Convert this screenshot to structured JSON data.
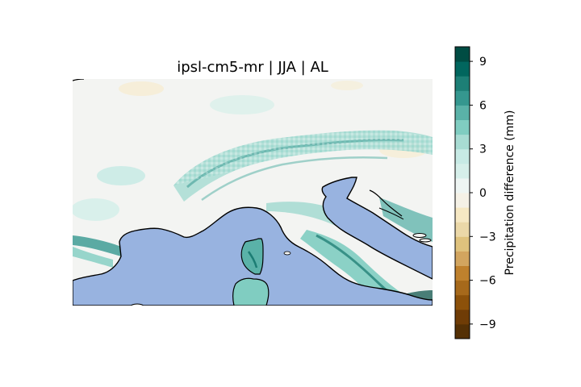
{
  "map": {
    "title": "ipsl-cm5-mr | JJA | AL",
    "ocean_color": "#98b3e0",
    "coastline_color": "#000000"
  },
  "colorbar": {
    "label": "Precipitation difference (mm)",
    "ticks": [
      "9",
      "6",
      "3",
      "0",
      "−3",
      "−6",
      "−9"
    ],
    "tick_values": [
      9,
      6,
      3,
      0,
      -3,
      -6,
      -9
    ],
    "range": [
      -10,
      10
    ],
    "colors": [
      "#543005",
      "#6f3c06",
      "#8c510a",
      "#a6691b",
      "#bf812d",
      "#d2a55f",
      "#dfc27d",
      "#ebd8a8",
      "#f6e8c3",
      "#f5f1e6",
      "#eef5f3",
      "#d6efea",
      "#c7eae5",
      "#a8dcd3",
      "#80cdc1",
      "#5ab2a8",
      "#35978f",
      "#1d7f76",
      "#01665e",
      "#004c43"
    ]
  }
}
